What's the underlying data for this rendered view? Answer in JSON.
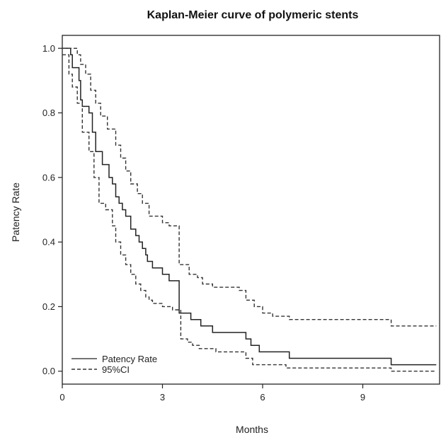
{
  "chart_data": {
    "type": "line",
    "title": "Kaplan-Meier curve of polymeric stents",
    "xlabel": "Months",
    "ylabel": "Patency Rate",
    "xlim": [
      0,
      11.3
    ],
    "ylim": [
      -0.04,
      1.04
    ],
    "x_ticks": [
      0,
      3,
      6,
      9
    ],
    "y_ticks": [
      0.0,
      0.2,
      0.4,
      0.6,
      0.8,
      1.0
    ],
    "x_tick_labels": [
      "0",
      "3",
      "6",
      "9"
    ],
    "y_tick_labels": [
      "0.0",
      "0.2",
      "0.4",
      "0.6",
      "0.8",
      "1.0"
    ],
    "grid": false,
    "legend_position": "bottom-left",
    "legend": [
      "Patency Rate",
      "95%CI"
    ],
    "series": [
      {
        "name": "Patency Rate",
        "style": "solid",
        "color": "#222222",
        "x": [
          0,
          0.25,
          0.3,
          0.5,
          0.55,
          0.6,
          0.8,
          0.9,
          1.0,
          1.2,
          1.4,
          1.5,
          1.6,
          1.7,
          1.8,
          1.9,
          2.05,
          2.2,
          2.3,
          2.4,
          2.5,
          2.55,
          2.7,
          2.85,
          3.0,
          3.1,
          3.2,
          3.45,
          3.5,
          3.85,
          4.15,
          4.5,
          5.1,
          5.5,
          5.65,
          5.75,
          5.9,
          6.1,
          6.8,
          9.85,
          11.2
        ],
        "y": [
          1.0,
          0.98,
          0.94,
          0.9,
          0.84,
          0.82,
          0.8,
          0.74,
          0.68,
          0.64,
          0.6,
          0.58,
          0.54,
          0.52,
          0.5,
          0.48,
          0.44,
          0.42,
          0.4,
          0.38,
          0.36,
          0.34,
          0.32,
          0.32,
          0.3,
          0.3,
          0.28,
          0.28,
          0.18,
          0.16,
          0.14,
          0.12,
          0.12,
          0.1,
          0.08,
          0.08,
          0.06,
          0.06,
          0.04,
          0.02,
          0.02
        ]
      },
      {
        "name": "95%CI",
        "style": "dashed",
        "color": "#333333",
        "x": [
          0,
          0.25,
          0.35,
          0.45,
          0.55,
          0.7,
          0.85,
          1.0,
          1.15,
          1.35,
          1.6,
          1.75,
          1.9,
          2.05,
          2.25,
          2.4,
          2.6,
          2.8,
          3.0,
          3.2,
          3.5,
          3.6,
          3.8,
          4.05,
          4.2,
          4.5,
          5.3,
          5.5,
          5.75,
          6.0,
          6.3,
          6.8,
          9.85,
          11.2
        ],
        "y": [
          1.0,
          1.0,
          1.0,
          0.98,
          0.95,
          0.92,
          0.87,
          0.83,
          0.79,
          0.75,
          0.7,
          0.66,
          0.62,
          0.58,
          0.55,
          0.52,
          0.48,
          0.48,
          0.46,
          0.45,
          0.33,
          0.33,
          0.3,
          0.29,
          0.27,
          0.26,
          0.25,
          0.22,
          0.2,
          0.18,
          0.17,
          0.16,
          0.14,
          0.14
        ]
      },
      {
        "name": "95%CI",
        "style": "dashed",
        "color": "#333333",
        "x": [
          0,
          0.2,
          0.3,
          0.45,
          0.6,
          0.8,
          0.95,
          1.1,
          1.3,
          1.5,
          1.6,
          1.75,
          1.9,
          2.05,
          2.2,
          2.35,
          2.5,
          2.6,
          2.7,
          2.85,
          3.0,
          3.1,
          3.3,
          3.45,
          3.55,
          3.75,
          3.9,
          4.1,
          4.6,
          5.5,
          5.7,
          6.1,
          6.7,
          9.85,
          11.2
        ],
        "y": [
          0.98,
          0.92,
          0.88,
          0.83,
          0.74,
          0.68,
          0.6,
          0.52,
          0.5,
          0.45,
          0.4,
          0.36,
          0.33,
          0.3,
          0.27,
          0.25,
          0.23,
          0.22,
          0.21,
          0.21,
          0.2,
          0.2,
          0.19,
          0.19,
          0.1,
          0.09,
          0.08,
          0.07,
          0.06,
          0.04,
          0.02,
          0.02,
          0.01,
          0.0,
          0.0
        ]
      }
    ]
  }
}
